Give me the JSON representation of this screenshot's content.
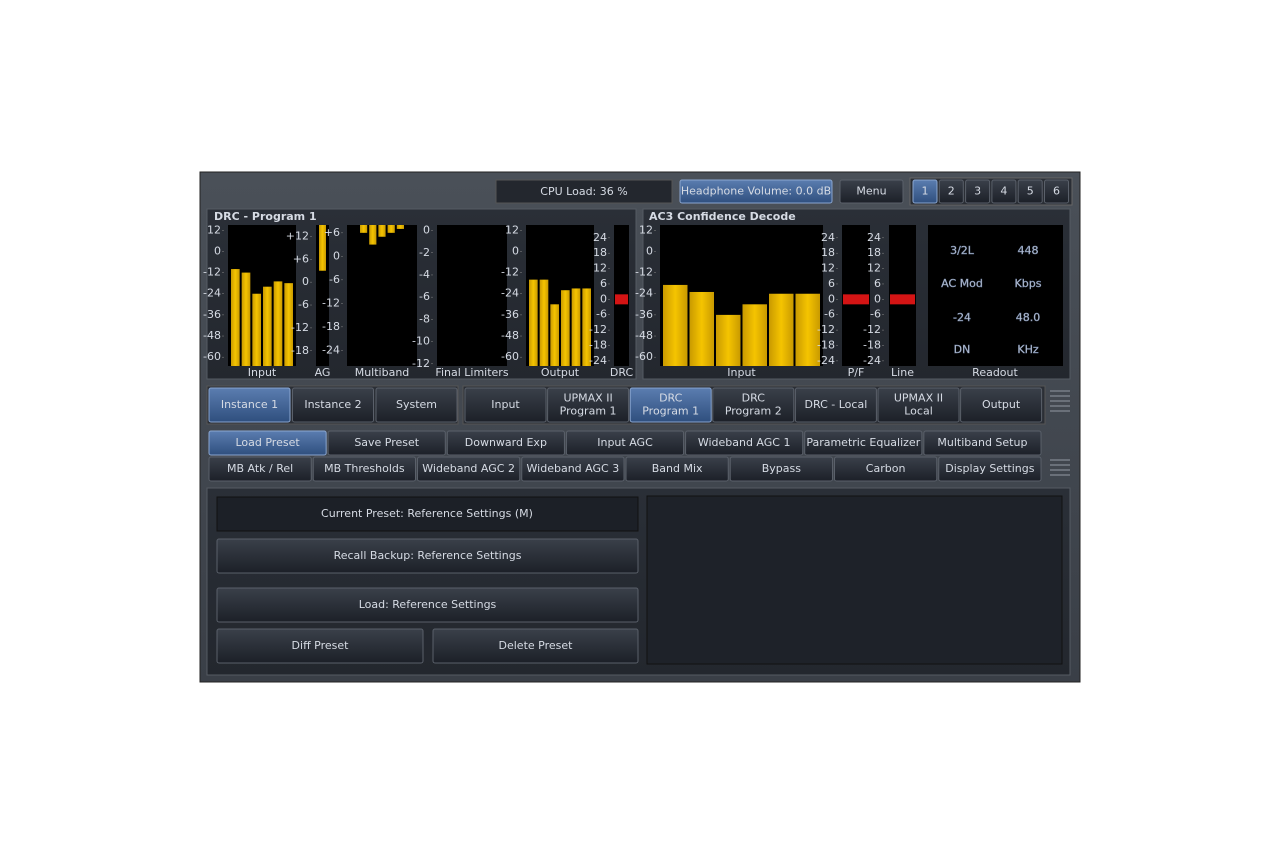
{
  "top_bar": {
    "cpu_load": "CPU Load: 36 %",
    "headphone_volume": "Headphone Volume: 0.0 dB",
    "menu": "Menu",
    "pages": [
      "1",
      "2",
      "3",
      "4",
      "5",
      "6"
    ],
    "active_page": 0
  },
  "left_panel": {
    "title": "DRC - Program 1",
    "meters": [
      {
        "label": "Input",
        "style": "rise",
        "range": [
          -65,
          15
        ],
        "ticks": [
          12,
          0,
          -12,
          -24,
          -36,
          -48,
          -60
        ],
        "levels": [
          -10,
          -12,
          -24,
          -20,
          -17,
          -18
        ]
      },
      {
        "label": "AG",
        "style": "fall",
        "range": [
          -22,
          15
        ],
        "ticks": [
          {
            "value": 12,
            "label": "+12"
          },
          {
            "value": 6,
            "label": "+6"
          },
          0,
          -6,
          -12,
          -18
        ],
        "levels": [
          3
        ]
      },
      {
        "label": "Multiband",
        "style": "fall",
        "range": [
          -28,
          8
        ],
        "ticks": [
          {
            "value": 6,
            "label": "+6"
          },
          0,
          -6,
          -12,
          -18,
          -24
        ],
        "levels": [
          6,
          3,
          5,
          6,
          7
        ]
      },
      {
        "label": "Final Limiters",
        "style": "fall",
        "range": [
          -12.2,
          0.5
        ],
        "ticks": [
          0,
          -2,
          -4,
          -6,
          -8,
          -10,
          -12
        ]
      },
      {
        "label": "Output",
        "style": "rise",
        "range": [
          -65,
          15
        ],
        "ticks": [
          12,
          0,
          -12,
          -24,
          -36,
          -48,
          -60
        ],
        "levels": [
          -16,
          -16,
          -30,
          -22,
          -21,
          -21
        ]
      },
      {
        "label": "DRC",
        "style": "marker",
        "range": [
          -26,
          29
        ],
        "ticks": [
          24,
          18,
          12,
          6,
          0,
          -6,
          -12,
          -18,
          -24
        ],
        "levels": [
          0
        ]
      }
    ]
  },
  "right_panel": {
    "title": "AC3 Confidence Decode",
    "meters": [
      {
        "label": "Input",
        "style": "rise",
        "range": [
          -65,
          15
        ],
        "ticks": [
          12,
          0,
          -12,
          -24,
          -36,
          -48,
          -60
        ],
        "levels": [
          -19,
          -23,
          -36,
          -30,
          -24,
          -24
        ]
      },
      {
        "label": "P/F",
        "style": "marker",
        "range": [
          -26,
          29
        ],
        "ticks": [
          24,
          18,
          12,
          6,
          0,
          -6,
          -12,
          -18,
          -24
        ],
        "levels": [
          0
        ]
      },
      {
        "label": "Line",
        "style": "marker",
        "range": [
          -26,
          29
        ],
        "ticks": [
          24,
          18,
          12,
          6,
          0,
          -6,
          -12,
          -18,
          -24
        ],
        "levels": [
          0
        ]
      }
    ],
    "readout": {
      "label": "Readout",
      "cells": [
        "3/2L",
        "448",
        "AC Mod",
        "Kbps",
        "-24",
        "48.0",
        "DN",
        "KHz"
      ]
    }
  },
  "instance_tabs": {
    "items": [
      "Instance 1",
      "Instance 2",
      "System"
    ],
    "active": 0
  },
  "module_tabs": {
    "items": [
      [
        "Input"
      ],
      [
        "UPMAX II",
        "Program 1"
      ],
      [
        "DRC",
        "Program 1"
      ],
      [
        "DRC",
        "Program 2"
      ],
      [
        "DRC - Local"
      ],
      [
        "UPMAX II",
        "Local"
      ],
      [
        "Output"
      ]
    ],
    "active": 2
  },
  "function_tabs": {
    "rows": [
      [
        "Load Preset",
        "Save Preset",
        "Downward Exp",
        "Input AGC",
        "Wideband AGC 1",
        "Parametric Equalizer",
        "Multiband Setup"
      ],
      [
        "MB Atk / Rel",
        "MB Thresholds",
        "Wideband AGC 2",
        "Wideband AGC 3",
        "Band Mix",
        "Bypass",
        "Carbon",
        "Display Settings"
      ]
    ],
    "active_row": 0,
    "active": 0
  },
  "preset_panel": {
    "current": "Current Preset: Reference Settings (M)",
    "buttons": [
      "Recall Backup: Reference Settings",
      "Load: Reference Settings",
      "Diff Preset",
      "Delete Preset"
    ]
  }
}
